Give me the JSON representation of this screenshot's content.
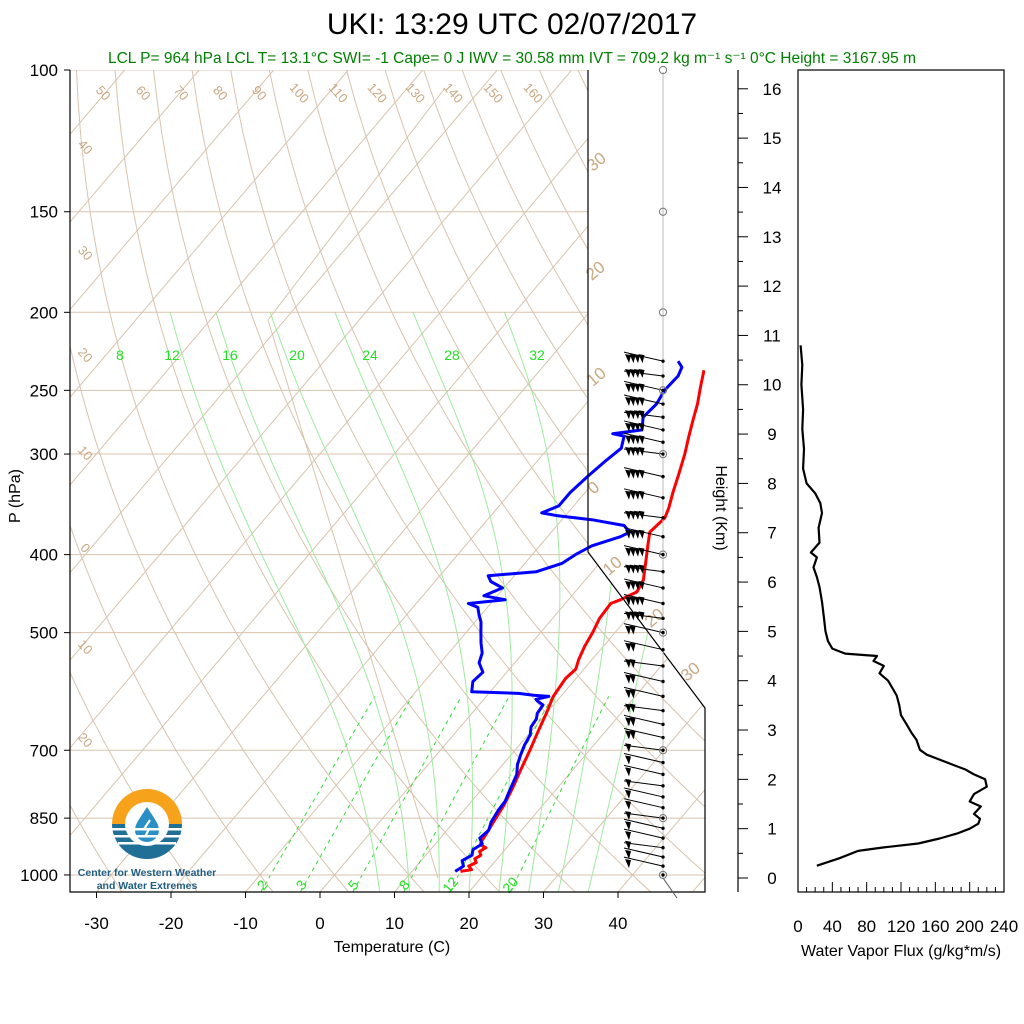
{
  "header": {
    "title": "UKI: 13:29 UTC 02/07/2017",
    "subtitle": "LCL P= 964 hPa  LCL T= 13.1°C  SWI= -1  Cape= 0 J  IWV = 30.58 mm  IVT = 709.2 kg m⁻¹ s⁻¹  0°C Height = 3167.95 m"
  },
  "logo": {
    "line1": "Center for Western Weather",
    "line2": "and Water Extremes"
  },
  "colors": {
    "temperature": "#ff0000",
    "dewpoint": "#0000ff",
    "isotherms": "#d8c3ad",
    "adiabats": "#d8c3ad",
    "mixing_ratio": "#33dd33",
    "flux": "#000000"
  },
  "chart_data": [
    {
      "type": "line",
      "subtype": "skew-t log-p sounding",
      "xlabel": "Temperature (C)",
      "ylabel": "P (hPa)",
      "x_ticks": [
        -30,
        -20,
        -10,
        0,
        10,
        20,
        30,
        40
      ],
      "y_ticks": [
        100,
        150,
        200,
        250,
        300,
        400,
        500,
        700,
        850,
        1000
      ],
      "y_scale": "log",
      "isotherm_labels_top": [
        50,
        60,
        70,
        80,
        90,
        100,
        110,
        120,
        130,
        140,
        150,
        160
      ],
      "isotherm_labels_left": [
        40,
        30,
        20,
        10,
        0,
        10,
        20
      ],
      "adiabat_labels": [
        30,
        20,
        10,
        0,
        10,
        20,
        30
      ],
      "mixing_ratio_labels_top": [
        8,
        12,
        16,
        20,
        24,
        28,
        32
      ],
      "mixing_ratio_labels_bottom": [
        2,
        3,
        5,
        8,
        12,
        20
      ],
      "series": [
        {
          "name": "Temperature",
          "points": [
            [
              16.5,
              990
            ],
            [
              17.8,
              985
            ],
            [
              17.0,
              975
            ],
            [
              17.6,
              965
            ],
            [
              17.0,
              955
            ],
            [
              17.4,
              945
            ],
            [
              16.8,
              935
            ],
            [
              17.2,
              925
            ],
            [
              16.2,
              918
            ],
            [
              15.9,
              910
            ],
            [
              15.7,
              890
            ],
            [
              15.3,
              860
            ],
            [
              14.8,
              820
            ],
            [
              14.0,
              780
            ],
            [
              13.0,
              740
            ],
            [
              12.0,
              700
            ],
            [
              11.0,
              665
            ],
            [
              10.0,
              630
            ],
            [
              9.0,
              600
            ],
            [
              8.6,
              570
            ],
            [
              8.9,
              555
            ],
            [
              8.2,
              540
            ],
            [
              7.5,
              520
            ],
            [
              7.0,
              500
            ],
            [
              6.3,
              480
            ],
            [
              6.1,
              460
            ],
            [
              7.0,
              455
            ],
            [
              8.3,
              445
            ],
            [
              7.8,
              430
            ],
            [
              6.2,
              410
            ],
            [
              4.5,
              390
            ],
            [
              3.2,
              375
            ],
            [
              3.6,
              360
            ],
            [
              3.0,
              350
            ],
            [
              1.8,
              335
            ],
            [
              0.5,
              318
            ],
            [
              -1.0,
              300
            ],
            [
              -2.5,
              285
            ],
            [
              -3.8,
              272
            ],
            [
              -5.0,
              260
            ],
            [
              -6.5,
              248
            ],
            [
              -8.0,
              236
            ]
          ]
        },
        {
          "name": "Dewpoint",
          "points": [
            [
              15.8,
              990
            ],
            [
              16.3,
              975
            ],
            [
              15.5,
              960
            ],
            [
              16.2,
              945
            ],
            [
              15.7,
              930
            ],
            [
              16.3,
              915
            ],
            [
              15.3,
              900
            ],
            [
              15.6,
              880
            ],
            [
              15.0,
              860
            ],
            [
              14.6,
              830
            ],
            [
              14.5,
              810
            ],
            [
              14.0,
              790
            ],
            [
              13.5,
              770
            ],
            [
              13.0,
              750
            ],
            [
              12.0,
              730
            ],
            [
              11.3,
              710
            ],
            [
              10.7,
              690
            ],
            [
              10.3,
              670
            ],
            [
              9.5,
              655
            ],
            [
              9.3,
              640
            ],
            [
              8.8,
              630
            ],
            [
              8.6,
              615
            ],
            [
              7.4,
              608
            ],
            [
              7.0,
              605
            ],
            [
              8.4,
              600
            ],
            [
              6.2,
              598
            ],
            [
              4.0,
              595
            ],
            [
              -2.5,
              592
            ],
            [
              -3.5,
              575
            ],
            [
              -3.2,
              560
            ],
            [
              -4.8,
              545
            ],
            [
              -5.5,
              530
            ],
            [
              -6.8,
              515
            ],
            [
              -8.0,
              500
            ],
            [
              -9.2,
              485
            ],
            [
              -10.3,
              475
            ],
            [
              -11.3,
              465
            ],
            [
              -13.0,
              460
            ],
            [
              -8.5,
              455
            ],
            [
              -11.8,
              450
            ],
            [
              -10.2,
              440
            ],
            [
              -12.5,
              432
            ],
            [
              -13.5,
              425
            ],
            [
              -7.5,
              420
            ],
            [
              -5.0,
              410
            ],
            [
              -4.2,
              400
            ],
            [
              -3.0,
              390
            ],
            [
              -0.2,
              380
            ],
            [
              0.5,
              375
            ],
            [
              -1.0,
              368
            ],
            [
              -6.0,
              362
            ],
            [
              -11.0,
              358
            ],
            [
              -13.5,
              355
            ],
            [
              -12.0,
              348
            ],
            [
              -12.0,
              335
            ],
            [
              -11.5,
              320
            ],
            [
              -10.8,
              305
            ],
            [
              -10.2,
              295
            ],
            [
              -11.2,
              285
            ],
            [
              -13.0,
              283
            ],
            [
              -9.5,
              280
            ],
            [
              -10.8,
              270
            ],
            [
              -10.5,
              260
            ],
            [
              -11.0,
              250
            ],
            [
              -10.8,
              240
            ],
            [
              -11.3,
              234
            ],
            [
              -12.5,
              230
            ]
          ]
        }
      ]
    },
    {
      "type": "line",
      "subtype": "wind barbs",
      "levels_hpa": [
        1000,
        975,
        950,
        925,
        900,
        875,
        850,
        825,
        800,
        775,
        750,
        725,
        700,
        675,
        650,
        625,
        600,
        575,
        550,
        525,
        500,
        480,
        460,
        440,
        420,
        400,
        380,
        360,
        340,
        320,
        300,
        290,
        280,
        270,
        260,
        250,
        240,
        230
      ]
    },
    {
      "type": "line",
      "xlabel": "Water Vapor Flux (g/kg*m/s)",
      "ylabel": "Height (Km)",
      "x_ticks": [
        0,
        40,
        80,
        120,
        160,
        200,
        240
      ],
      "y_ticks": [
        0,
        1,
        2,
        3,
        4,
        5,
        6,
        7,
        8,
        9,
        10,
        11,
        12,
        13,
        14,
        15,
        16
      ],
      "xlim": [
        0,
        240
      ],
      "ylim": [
        0,
        16.3
      ],
      "series": [
        {
          "name": "Water Vapor Flux",
          "points": [
            [
              22,
              0.25
            ],
            [
              48,
              0.4
            ],
            [
              70,
              0.55
            ],
            [
              100,
              0.62
            ],
            [
              140,
              0.7
            ],
            [
              165,
              0.8
            ],
            [
              185,
              0.9
            ],
            [
              200,
              1.0
            ],
            [
              210,
              1.1
            ],
            [
              212,
              1.2
            ],
            [
              205,
              1.3
            ],
            [
              213,
              1.45
            ],
            [
              200,
              1.55
            ],
            [
              205,
              1.7
            ],
            [
              220,
              1.85
            ],
            [
              218,
              2.0
            ],
            [
              205,
              2.1
            ],
            [
              195,
              2.2
            ],
            [
              180,
              2.3
            ],
            [
              165,
              2.4
            ],
            [
              150,
              2.5
            ],
            [
              142,
              2.6
            ],
            [
              138,
              2.8
            ],
            [
              132,
              2.95
            ],
            [
              127,
              3.1
            ],
            [
              120,
              3.3
            ],
            [
              118,
              3.5
            ],
            [
              115,
              3.7
            ],
            [
              110,
              3.85
            ],
            [
              105,
              4.0
            ],
            [
              95,
              4.15
            ],
            [
              100,
              4.3
            ],
            [
              88,
              4.4
            ],
            [
              92,
              4.5
            ],
            [
              55,
              4.55
            ],
            [
              40,
              4.65
            ],
            [
              35,
              4.8
            ],
            [
              32,
              5.0
            ],
            [
              30,
              5.3
            ],
            [
              28,
              5.6
            ],
            [
              25,
              5.9
            ],
            [
              22,
              6.1
            ],
            [
              18,
              6.3
            ],
            [
              22,
              6.5
            ],
            [
              15,
              6.6
            ],
            [
              25,
              6.8
            ],
            [
              24,
              7.1
            ],
            [
              28,
              7.4
            ],
            [
              26,
              7.6
            ],
            [
              20,
              7.8
            ],
            [
              10,
              8.0
            ],
            [
              6,
              8.3
            ],
            [
              7,
              8.7
            ],
            [
              5,
              9.1
            ],
            [
              6,
              9.5
            ],
            [
              4,
              10.0
            ],
            [
              5,
              10.4
            ],
            [
              3,
              10.8
            ]
          ]
        }
      ]
    }
  ]
}
